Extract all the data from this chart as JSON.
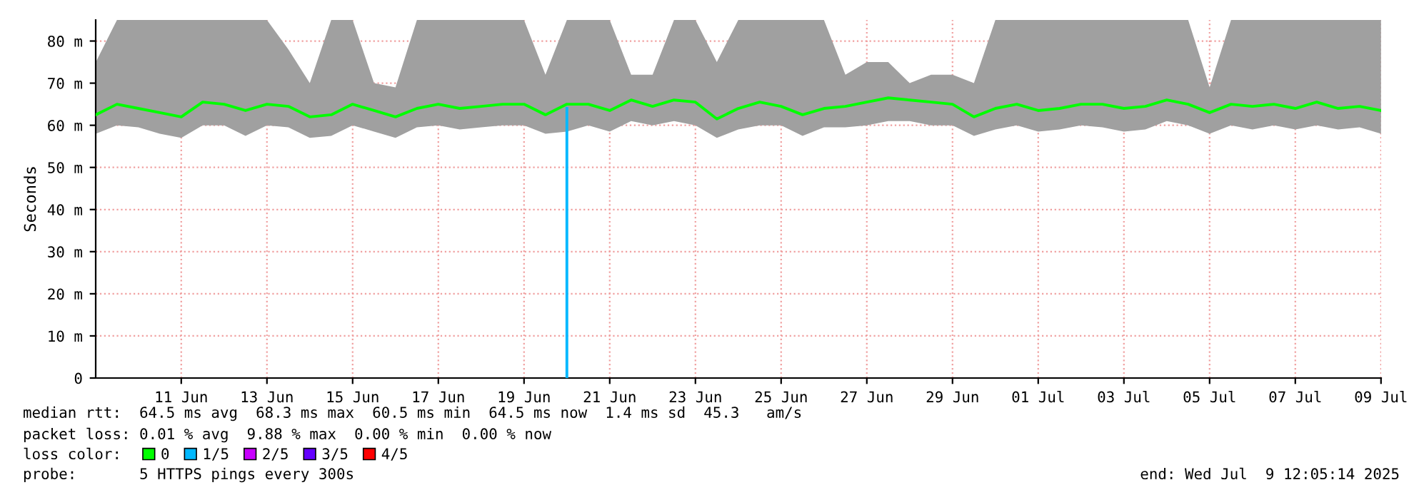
{
  "chart_data": {
    "type": "line",
    "ylabel": "Seconds",
    "ylim": [
      0,
      85
    ],
    "yticks": [
      0,
      {
        "value": 10,
        "label": "10 m"
      },
      {
        "value": 20,
        "label": "20 m"
      },
      {
        "value": 30,
        "label": "30 m"
      },
      {
        "value": 40,
        "label": "40 m"
      },
      {
        "value": 50,
        "label": "50 m"
      },
      {
        "value": 60,
        "label": "60 m"
      },
      {
        "value": 70,
        "label": "70 m"
      },
      {
        "value": 80,
        "label": "80 m"
      }
    ],
    "xlim": [
      "2025-06-09T12:05",
      "2025-07-09T12:05"
    ],
    "xticks": [
      {
        "value": "2025-06-11T12:00",
        "label": "11 Jun"
      },
      {
        "value": "2025-06-13T12:00",
        "label": "13 Jun"
      },
      {
        "value": "2025-06-15T12:00",
        "label": "15 Jun"
      },
      {
        "value": "2025-06-17T12:00",
        "label": "17 Jun"
      },
      {
        "value": "2025-06-19T12:00",
        "label": "19 Jun"
      },
      {
        "value": "2025-06-21T12:00",
        "label": "21 Jun"
      },
      {
        "value": "2025-06-23T12:00",
        "label": "23 Jun"
      },
      {
        "value": "2025-06-25T12:00",
        "label": "25 Jun"
      },
      {
        "value": "2025-06-27T12:00",
        "label": "27 Jun"
      },
      {
        "value": "2025-06-29T12:00",
        "label": "29 Jun"
      },
      {
        "value": "2025-07-01T12:00",
        "label": "01 Jul"
      },
      {
        "value": "2025-07-03T12:00",
        "label": "03 Jul"
      },
      {
        "value": "2025-07-05T12:00",
        "label": "05 Jul"
      },
      {
        "value": "2025-07-07T12:00",
        "label": "07 Jul"
      },
      {
        "value": "2025-07-09T12:00",
        "label": "09 Jul"
      }
    ],
    "grid": true,
    "legend": "bottom left",
    "legend_title": "loss color:",
    "series": [
      {
        "name": "0",
        "color": "#00ff00",
        "x": [
          "2025-06-09T12:10",
          "2025-06-10",
          "2025-06-10T12:00",
          "2025-06-11",
          "2025-06-11T12:00",
          "2025-06-12",
          "2025-06-12T12:00",
          "2025-06-13",
          "2025-06-13T12:00",
          "2025-06-14",
          "2025-06-14T12:00",
          "2025-06-15",
          "2025-06-15T12:00",
          "2025-06-16",
          "2025-06-16T12:00",
          "2025-06-17",
          "2025-06-17T12:00",
          "2025-06-18",
          "2025-06-18T12:00",
          "2025-06-19",
          "2025-06-19T12:00",
          "2025-06-20",
          "2025-06-20T12:00",
          "2025-06-21",
          "2025-06-21T12:00",
          "2025-06-22",
          "2025-06-22T12:00",
          "2025-06-23",
          "2025-06-23T12:00",
          "2025-06-24",
          "2025-06-24T12:00",
          "2025-06-25",
          "2025-06-25T12:00",
          "2025-06-26",
          "2025-06-26T12:00",
          "2025-06-27",
          "2025-06-27T12:00",
          "2025-06-28",
          "2025-06-28T12:00",
          "2025-06-29",
          "2025-06-29T12:00",
          "2025-06-30",
          "2025-06-30T12:00",
          "2025-07-01",
          "2025-07-01T12:00",
          "2025-07-02",
          "2025-07-02T12:00",
          "2025-07-03",
          "2025-07-03T12:00",
          "2025-07-04",
          "2025-07-04T12:00",
          "2025-07-05",
          "2025-07-05T12:00",
          "2025-07-06",
          "2025-07-06T12:00",
          "2025-07-07",
          "2025-07-07T12:00",
          "2025-07-08",
          "2025-07-08T12:00",
          "2025-07-09",
          "2025-07-09T12:00"
        ],
        "values": [
          62.5,
          65,
          64,
          63,
          62,
          65.5,
          65,
          63.5,
          65,
          64.5,
          62,
          62.5,
          65,
          63.5,
          62,
          64,
          65,
          64,
          64.5,
          65,
          65,
          62.5,
          65,
          65,
          63.5,
          66,
          64.5,
          66,
          65.5,
          61.5,
          64,
          65.5,
          64.5,
          62.5,
          64,
          64.5,
          65.5,
          66.5,
          66,
          65.5,
          65,
          62,
          64,
          65,
          63.5,
          64,
          65,
          65,
          64,
          64.5,
          66,
          65,
          63,
          65,
          64.5,
          65,
          64,
          65.5,
          64,
          64.5,
          63.5
        ],
        "lower": [
          58,
          60,
          59.5,
          58,
          57,
          60,
          60,
          57.5,
          60,
          59.5,
          57,
          57.5,
          60,
          58.5,
          57,
          59.5,
          60,
          59,
          59.5,
          60,
          60,
          58,
          58.5,
          60,
          58.5,
          61,
          60,
          61,
          60,
          57,
          59,
          60,
          60,
          57.5,
          59.5,
          59.5,
          60,
          61,
          61,
          60,
          60,
          57.5,
          59,
          60,
          58.5,
          59,
          60,
          59.5,
          58.5,
          59,
          61,
          60,
          58,
          60,
          59,
          60,
          59,
          60,
          59,
          59.5,
          58
        ],
        "upper": [
          75,
          85,
          85,
          85,
          85,
          85,
          85,
          85,
          85,
          78,
          70,
          85,
          85,
          70,
          69,
          85,
          85,
          85,
          85,
          85,
          85,
          72,
          85,
          85,
          85,
          72,
          72,
          85,
          85,
          75,
          85,
          85,
          85,
          85,
          85,
          72,
          75,
          75,
          70,
          72,
          72,
          70,
          85,
          85,
          85,
          85,
          85,
          85,
          85,
          85,
          85,
          85,
          69,
          85,
          85,
          85,
          85,
          85,
          85,
          85,
          85
        ]
      },
      {
        "name": "1/5",
        "color": "#00b8ff",
        "x": [
          "2025-06-20T12:00",
          "2025-06-20T12:00"
        ],
        "values": [
          0,
          64
        ]
      },
      {
        "name": "2/5",
        "color": "#c800ff"
      },
      {
        "name": "3/5",
        "color": "#6400ff"
      },
      {
        "name": "4/5",
        "color": "#ff0000"
      }
    ],
    "annotations": [
      "median rtt:  64.5 ms avg  68.3 ms max  60.5 ms min  64.5 ms now  1.4 ms sd  45.3   am/s",
      "packet loss: 0.01 % avg  9.88 % max  0.00 % min  0.00 % now",
      "probe:       5 HTTPS pings every 300s",
      "end: Wed Jul  9 12:05:14 2025"
    ]
  }
}
